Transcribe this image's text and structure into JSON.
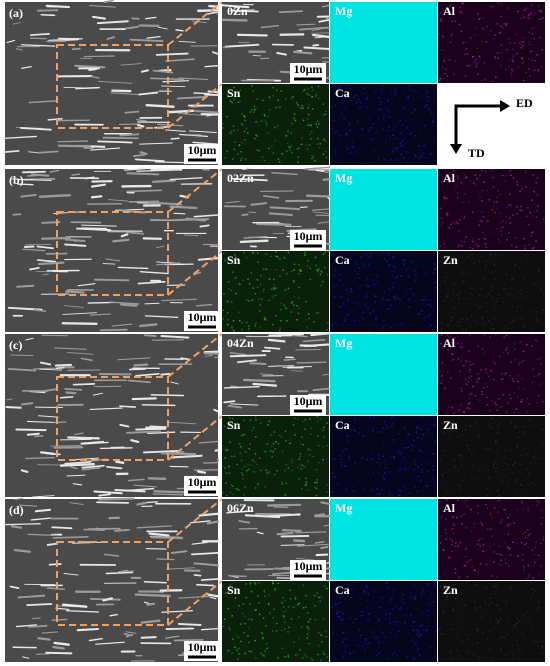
{
  "panels": [
    {
      "label": "(a)",
      "scale_bar": "10μm",
      "zoom": {
        "label": "0Zn",
        "scale_bar": "10μm"
      },
      "maps": [
        {
          "element": "Mg",
          "color": "#00e3e3"
        },
        {
          "element": "Al",
          "color": "#c020c0"
        },
        {
          "element": "Sn",
          "color": "#30c030"
        },
        {
          "element": "Ca",
          "color": "#2020d0"
        }
      ],
      "directions": {
        "horizontal": "ED",
        "vertical": "TD"
      }
    },
    {
      "label": "(b)",
      "scale_bar": "10μm",
      "zoom": {
        "label": "02Zn",
        "scale_bar": "10μm"
      },
      "maps": [
        {
          "element": "Mg",
          "color": "#00e3e3"
        },
        {
          "element": "Al",
          "color": "#c020c0"
        },
        {
          "element": "Sn",
          "color": "#30c030"
        },
        {
          "element": "Ca",
          "color": "#2020d0"
        },
        {
          "element": "Zn",
          "color": "#303030"
        }
      ]
    },
    {
      "label": "(c)",
      "scale_bar": "10μm",
      "zoom": {
        "label": "04Zn",
        "scale_bar": "10μm"
      },
      "maps": [
        {
          "element": "Mg",
          "color": "#00e3e3"
        },
        {
          "element": "Al",
          "color": "#c020c0"
        },
        {
          "element": "Sn",
          "color": "#30c030"
        },
        {
          "element": "Ca",
          "color": "#2020d0"
        },
        {
          "element": "Zn",
          "color": "#303030"
        }
      ]
    },
    {
      "label": "(d)",
      "scale_bar": "10μm",
      "zoom": {
        "label": "06Zn",
        "scale_bar": "10μm"
      },
      "maps": [
        {
          "element": "Mg",
          "color": "#00e3e3"
        },
        {
          "element": "Al",
          "color": "#c020c0"
        },
        {
          "element": "Sn",
          "color": "#30c030"
        },
        {
          "element": "Ca",
          "color": "#2020d0"
        },
        {
          "element": "Zn",
          "color": "#303030"
        }
      ]
    }
  ]
}
